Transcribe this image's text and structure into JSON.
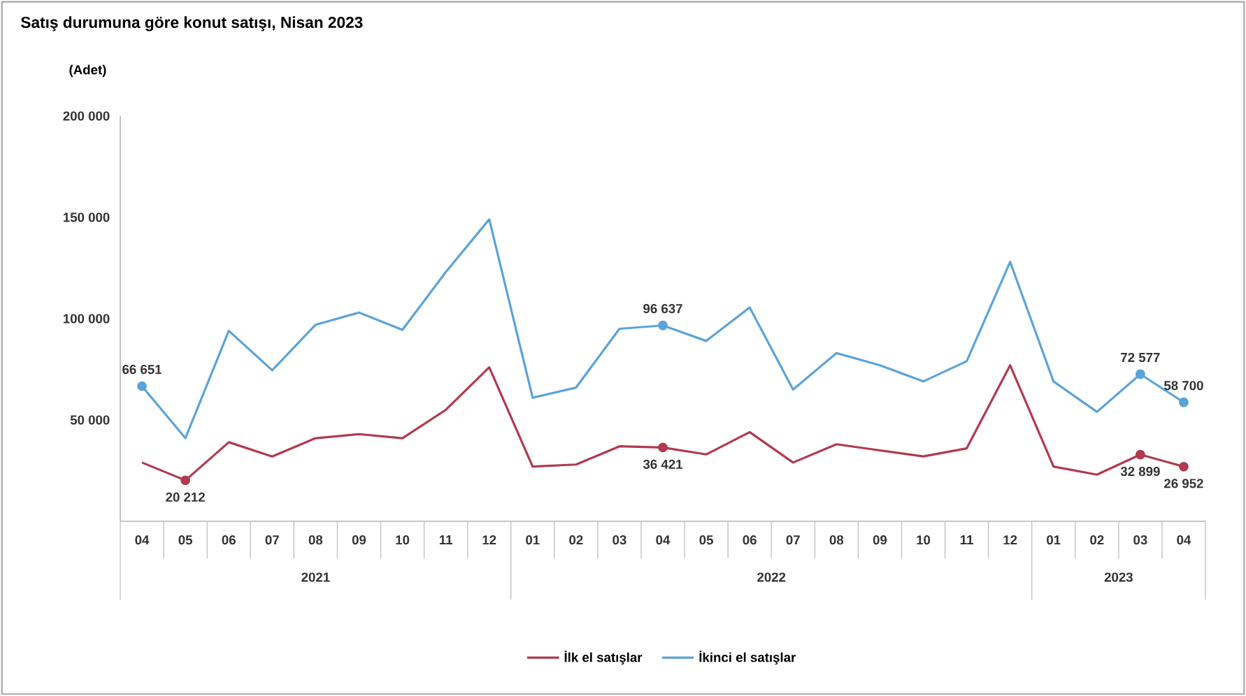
{
  "chart_data": {
    "type": "line",
    "title": "Satış durumuna göre konut satışı, Nisan 2023",
    "ylabel": "(Adet)",
    "categories": [
      "04",
      "05",
      "06",
      "07",
      "08",
      "09",
      "10",
      "11",
      "12",
      "01",
      "02",
      "03",
      "04",
      "05",
      "06",
      "07",
      "08",
      "09",
      "10",
      "11",
      "12",
      "01",
      "02",
      "03",
      "04"
    ],
    "series": [
      {
        "name": "İlk el satışlar",
        "color": "#b03a4e",
        "values": [
          29000,
          20212,
          39000,
          32000,
          41000,
          43000,
          41000,
          55000,
          76000,
          27000,
          28000,
          37000,
          36421,
          33000,
          44000,
          29000,
          38000,
          35000,
          32000,
          36000,
          77000,
          27000,
          23000,
          32899,
          26952
        ],
        "value_labels": [
          null,
          "20 212",
          null,
          null,
          null,
          null,
          null,
          null,
          null,
          null,
          null,
          null,
          "36 421",
          null,
          null,
          null,
          null,
          null,
          null,
          null,
          null,
          null,
          null,
          "32 899",
          "26 952"
        ]
      },
      {
        "name": "İkinci el satışlar",
        "color": "#5ba3d9",
        "values": [
          66651,
          41000,
          94000,
          74500,
          97000,
          103000,
          94500,
          123000,
          149000,
          61000,
          66000,
          95000,
          96637,
          89000,
          105500,
          65000,
          83000,
          77000,
          69000,
          79000,
          128000,
          69000,
          54000,
          72577,
          58700
        ],
        "value_labels": [
          "66 651",
          null,
          null,
          null,
          null,
          null,
          null,
          null,
          null,
          null,
          null,
          null,
          "96 637",
          null,
          null,
          null,
          null,
          null,
          null,
          null,
          null,
          null,
          null,
          "72 577",
          "58 700"
        ]
      }
    ],
    "ylim": [
      0,
      200000
    ],
    "yticks": [
      {
        "value": 50000,
        "label": "50 000"
      },
      {
        "value": 100000,
        "label": "100 000"
      },
      {
        "value": 150000,
        "label": "150 000"
      },
      {
        "value": 200000,
        "label": "200 000"
      }
    ],
    "grid": false,
    "legend": "bottom",
    "line_style": "solid",
    "annotations": [
      "2021",
      "2022",
      "2023"
    ]
  }
}
